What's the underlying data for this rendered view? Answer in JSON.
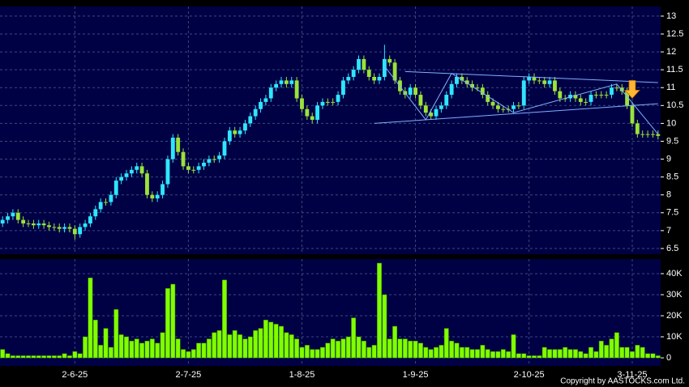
{
  "chart_data": [
    {
      "type": "candlestick",
      "categories": [
        null,
        null,
        null,
        null,
        null,
        null,
        null,
        null,
        null,
        null,
        null,
        null,
        null,
        null,
        "2-6-25",
        null,
        null,
        null,
        null,
        null,
        null,
        null,
        null,
        null,
        null,
        null,
        null,
        null,
        null,
        null,
        null,
        null,
        null,
        null,
        null,
        null,
        "2-7-25",
        null,
        null,
        null,
        null,
        null,
        null,
        null,
        null,
        null,
        null,
        null,
        null,
        null,
        null,
        null,
        null,
        null,
        null,
        null,
        null,
        null,
        "1-8-25",
        null,
        null,
        null,
        null,
        null,
        null,
        null,
        null,
        null,
        null,
        null,
        null,
        null,
        null,
        null,
        null,
        null,
        null,
        null,
        null,
        null,
        "1-9-25",
        null,
        null,
        null,
        null,
        null,
        null,
        null,
        null,
        null,
        null,
        null,
        null,
        null,
        null,
        null,
        null,
        null,
        null,
        null,
        null,
        null,
        "2-10-25",
        null,
        null,
        null,
        null,
        null,
        null,
        null,
        null,
        null,
        null,
        null,
        null,
        null,
        null,
        null,
        null,
        null,
        null,
        null,
        "3-11-25",
        null,
        null,
        null,
        null,
        null
      ],
      "open": [
        7.2,
        7.3,
        7.4,
        7.5,
        7.3,
        7.2,
        7.2,
        7.15,
        7.2,
        7.15,
        7.1,
        7.1,
        7.05,
        7.1,
        7.05,
        6.9,
        7.1,
        7.2,
        7.4,
        7.6,
        7.8,
        7.8,
        8.0,
        8.4,
        8.5,
        8.6,
        8.7,
        8.8,
        8.6,
        8.0,
        7.9,
        8.0,
        8.3,
        9.0,
        9.6,
        9.2,
        8.8,
        8.7,
        8.7,
        8.8,
        8.9,
        9.0,
        9.0,
        9.1,
        9.5,
        9.8,
        9.7,
        9.8,
        10.0,
        10.2,
        10.4,
        10.6,
        10.7,
        11.0,
        11.1,
        11.2,
        11.1,
        11.2,
        10.7,
        10.4,
        10.2,
        10.1,
        10.5,
        10.6,
        10.6,
        10.6,
        10.8,
        11.2,
        11.3,
        11.5,
        11.8,
        11.5,
        11.3,
        11.2,
        11.3,
        11.8,
        11.7,
        11.2,
        10.9,
        10.8,
        11.0,
        10.8,
        10.5,
        10.3,
        10.2,
        10.4,
        10.5,
        10.8,
        11.1,
        11.3,
        11.2,
        11.1,
        11.0,
        11.0,
        10.8,
        10.6,
        10.5,
        10.4,
        10.4,
        10.4,
        10.5,
        10.5,
        11.2,
        11.3,
        11.2,
        11.2,
        11.1,
        11.2,
        10.9,
        10.7,
        10.7,
        10.8,
        10.7,
        10.6,
        10.6,
        10.8,
        10.8,
        10.8,
        10.8,
        11.0,
        11.0,
        10.9,
        10.5,
        10.0,
        9.7,
        9.7,
        9.7,
        9.7
      ],
      "high": [
        7.4,
        7.5,
        7.6,
        7.6,
        7.4,
        7.3,
        7.3,
        7.3,
        7.3,
        7.25,
        7.2,
        7.2,
        7.2,
        7.2,
        7.15,
        7.2,
        7.3,
        7.5,
        7.7,
        7.9,
        7.9,
        8.1,
        8.5,
        8.6,
        8.7,
        8.8,
        8.9,
        8.9,
        8.7,
        8.1,
        8.1,
        8.4,
        9.1,
        9.7,
        9.7,
        9.3,
        8.9,
        8.8,
        8.9,
        9.0,
        9.1,
        9.1,
        9.2,
        9.6,
        9.9,
        9.9,
        9.9,
        10.1,
        10.3,
        10.5,
        10.7,
        10.8,
        11.1,
        11.2,
        11.3,
        11.3,
        11.3,
        11.3,
        10.8,
        10.5,
        10.3,
        10.6,
        10.7,
        10.7,
        10.7,
        10.9,
        11.3,
        11.4,
        11.6,
        11.9,
        11.9,
        11.6,
        11.4,
        11.4,
        12.2,
        11.9,
        11.8,
        11.3,
        11.0,
        11.1,
        11.1,
        10.9,
        10.6,
        10.4,
        10.5,
        10.6,
        10.9,
        11.2,
        11.4,
        11.4,
        11.3,
        11.2,
        11.1,
        11.1,
        10.9,
        10.7,
        10.6,
        10.5,
        10.5,
        10.6,
        10.6,
        11.3,
        11.4,
        11.4,
        11.3,
        11.3,
        11.3,
        11.3,
        11.0,
        10.8,
        10.9,
        10.9,
        10.8,
        10.7,
        10.9,
        10.9,
        10.9,
        10.9,
        11.1,
        11.1,
        11.1,
        11.0,
        10.6,
        10.1,
        9.8,
        9.8,
        9.8,
        9.8
      ],
      "low": [
        7.1,
        7.2,
        7.3,
        7.2,
        7.1,
        7.1,
        7.05,
        7.05,
        7.05,
        7.0,
        7.0,
        6.95,
        6.95,
        6.95,
        6.75,
        6.8,
        7.0,
        7.1,
        7.3,
        7.5,
        7.7,
        7.7,
        7.9,
        8.3,
        8.4,
        8.5,
        8.6,
        8.5,
        7.9,
        7.8,
        7.8,
        7.9,
        8.2,
        8.9,
        9.1,
        8.7,
        8.6,
        8.6,
        8.6,
        8.7,
        8.8,
        8.9,
        8.9,
        9.0,
        9.4,
        9.6,
        9.6,
        9.7,
        9.9,
        10.1,
        10.3,
        10.5,
        10.6,
        10.9,
        11.0,
        11.0,
        11.0,
        10.6,
        10.3,
        10.1,
        10.0,
        10.0,
        10.4,
        10.5,
        10.5,
        10.5,
        10.7,
        11.1,
        11.2,
        11.4,
        11.4,
        11.2,
        11.1,
        11.1,
        11.2,
        11.6,
        11.1,
        10.8,
        10.7,
        10.7,
        10.7,
        10.4,
        10.2,
        10.1,
        10.1,
        10.3,
        10.4,
        10.7,
        11.0,
        11.1,
        11.0,
        10.9,
        10.9,
        10.7,
        10.5,
        10.4,
        10.3,
        10.3,
        10.3,
        10.3,
        10.4,
        10.4,
        11.1,
        11.1,
        11.1,
        11.0,
        11.0,
        10.8,
        10.6,
        10.6,
        10.6,
        10.6,
        10.5,
        10.5,
        10.5,
        10.7,
        10.7,
        10.7,
        10.7,
        10.9,
        10.8,
        10.4,
        9.9,
        9.6,
        9.6,
        9.6,
        9.6,
        9.55
      ],
      "close": [
        7.3,
        7.4,
        7.5,
        7.3,
        7.2,
        7.2,
        7.15,
        7.2,
        7.15,
        7.1,
        7.1,
        7.05,
        7.1,
        7.05,
        6.9,
        7.1,
        7.2,
        7.4,
        7.6,
        7.8,
        7.8,
        8.0,
        8.4,
        8.5,
        8.6,
        8.7,
        8.8,
        8.6,
        8.0,
        7.9,
        8.0,
        8.3,
        9.0,
        9.6,
        9.2,
        8.8,
        8.7,
        8.7,
        8.8,
        8.9,
        9.0,
        9.0,
        9.1,
        9.5,
        9.8,
        9.7,
        9.8,
        10.0,
        10.2,
        10.4,
        10.6,
        10.7,
        11.0,
        11.1,
        11.2,
        11.1,
        11.2,
        10.7,
        10.4,
        10.2,
        10.1,
        10.5,
        10.6,
        10.6,
        10.6,
        10.8,
        11.2,
        11.3,
        11.5,
        11.8,
        11.5,
        11.3,
        11.2,
        11.3,
        11.8,
        11.7,
        11.2,
        10.9,
        10.8,
        11.0,
        10.8,
        10.5,
        10.3,
        10.2,
        10.4,
        10.5,
        10.8,
        11.1,
        11.3,
        11.2,
        11.1,
        11.0,
        11.0,
        10.8,
        10.6,
        10.5,
        10.4,
        10.4,
        10.4,
        10.5,
        10.5,
        11.2,
        11.3,
        11.2,
        11.2,
        11.1,
        11.2,
        10.9,
        10.7,
        10.7,
        10.8,
        10.7,
        10.6,
        10.6,
        10.8,
        10.8,
        10.8,
        10.8,
        11.0,
        11.0,
        10.9,
        10.5,
        10.0,
        9.7,
        9.7,
        9.7,
        9.7,
        9.65
      ],
      "up_color": "#2ee6ff",
      "down_color": "#9be23a",
      "ylim": [
        6.34,
        13.27
      ],
      "yticks": [
        6.5,
        7,
        7.5,
        8,
        8.5,
        9,
        9.5,
        10,
        10.5,
        11,
        11.5,
        12,
        12.5,
        13
      ],
      "grid": true,
      "line_color": "#7fb2ff",
      "trendlines": [
        {
          "x": [
            72,
            127
          ],
          "y": [
            10.0,
            10.55
          ]
        },
        {
          "x": [
            78,
            127
          ],
          "y": [
            11.45,
            11.14
          ]
        },
        {
          "x": [
            74,
            82,
            87,
            99,
            119,
            127
          ],
          "y": [
            11.6,
            10.1,
            11.4,
            10.3,
            11.1,
            9.7
          ]
        }
      ],
      "marker": {
        "x": 122,
        "y": 11.2,
        "color": "#ffb733"
      }
    },
    {
      "type": "bar",
      "values": [
        4000,
        2000,
        1000,
        1000,
        1000,
        1000,
        1000,
        1000,
        1000,
        1000,
        1000,
        1000,
        2000,
        1000,
        3000,
        2000,
        10000,
        38000,
        18000,
        6000,
        14000,
        5000,
        23000,
        11000,
        10000,
        8000,
        9000,
        7000,
        8000,
        9000,
        7000,
        12000,
        33000,
        35000,
        9000,
        4000,
        3000,
        4000,
        7000,
        7000,
        9000,
        12000,
        13000,
        37000,
        11000,
        13000,
        11000,
        9000,
        10000,
        13000,
        14000,
        18000,
        17000,
        16000,
        15000,
        12000,
        11000,
        9000,
        5000,
        6000,
        4000,
        4000,
        5000,
        7000,
        9000,
        8000,
        9000,
        10000,
        19000,
        10000,
        8000,
        5000,
        6000,
        45000,
        30000,
        9000,
        15000,
        9000,
        9000,
        8000,
        8000,
        7000,
        5000,
        4000,
        5000,
        6000,
        14000,
        8000,
        7000,
        5000,
        5000,
        4000,
        4000,
        6000,
        4000,
        3000,
        3000,
        4000,
        3000,
        11000,
        2000,
        2000,
        1000,
        1000,
        1000,
        5000,
        4000,
        4000,
        4000,
        5000,
        4000,
        4000,
        3000,
        2000,
        5000,
        3000,
        8000,
        6000,
        9000,
        12000,
        5000,
        5000,
        3000,
        6000,
        5000,
        2000,
        2000,
        1000
      ],
      "color": "#80ff00",
      "ylim": [
        -3850,
        46920
      ],
      "yticks": [
        0,
        {
          "value": 10000,
          "label": "10K"
        },
        {
          "value": 20000,
          "label": "20K"
        },
        {
          "value": 30000,
          "label": "30K"
        },
        {
          "value": 40000,
          "label": "40K"
        }
      ],
      "grid": true
    }
  ],
  "source": "Copyright by AASTOCKS.com Ltd."
}
